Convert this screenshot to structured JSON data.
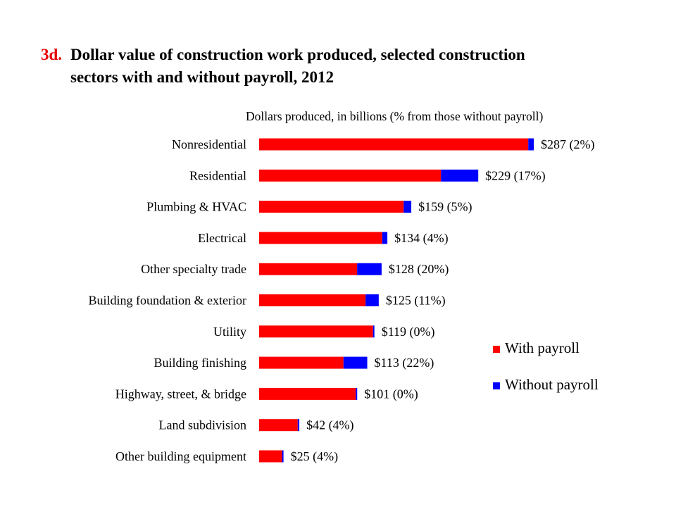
{
  "title": {
    "number": "3d.",
    "line1": "Dollar value of construction work produced, selected construction",
    "line2": "sectors with and without payroll, 2012"
  },
  "chart_data": {
    "type": "bar",
    "orientation": "horizontal",
    "stacked": true,
    "subtitle": "Dollars produced,  in billions (% from those without payroll)",
    "categories": [
      "Nonresidential",
      "Residential",
      "Plumbing & HVAC",
      "Electrical",
      "Other specialty trade",
      "Building foundation & exterior",
      "Utility",
      "Building finishing",
      "Highway, street, & bridge",
      "Land subdivision",
      "Other building equipment"
    ],
    "totals": [
      287,
      229,
      159,
      134,
      128,
      125,
      119,
      113,
      101,
      42,
      25
    ],
    "pct_without_payroll": [
      2,
      17,
      5,
      4,
      20,
      11,
      0,
      22,
      0,
      4,
      4
    ],
    "series": [
      {
        "name": "With payroll",
        "color": "#ff0000"
      },
      {
        "name": "Without payroll",
        "color": "#0000ff"
      }
    ],
    "data_labels": [
      "$287 (2%)",
      "$229 (17%)",
      "$159 (5%)",
      "$134 (4%)",
      "$128 (20%)",
      "$125 (11%)",
      "$119 (0%)",
      "$113 (22%)",
      "$101 (0%)",
      "$42 (4%)",
      "$25 (4%)"
    ],
    "xlim": [
      0,
      287
    ],
    "grid": false,
    "legend_position": "right"
  }
}
